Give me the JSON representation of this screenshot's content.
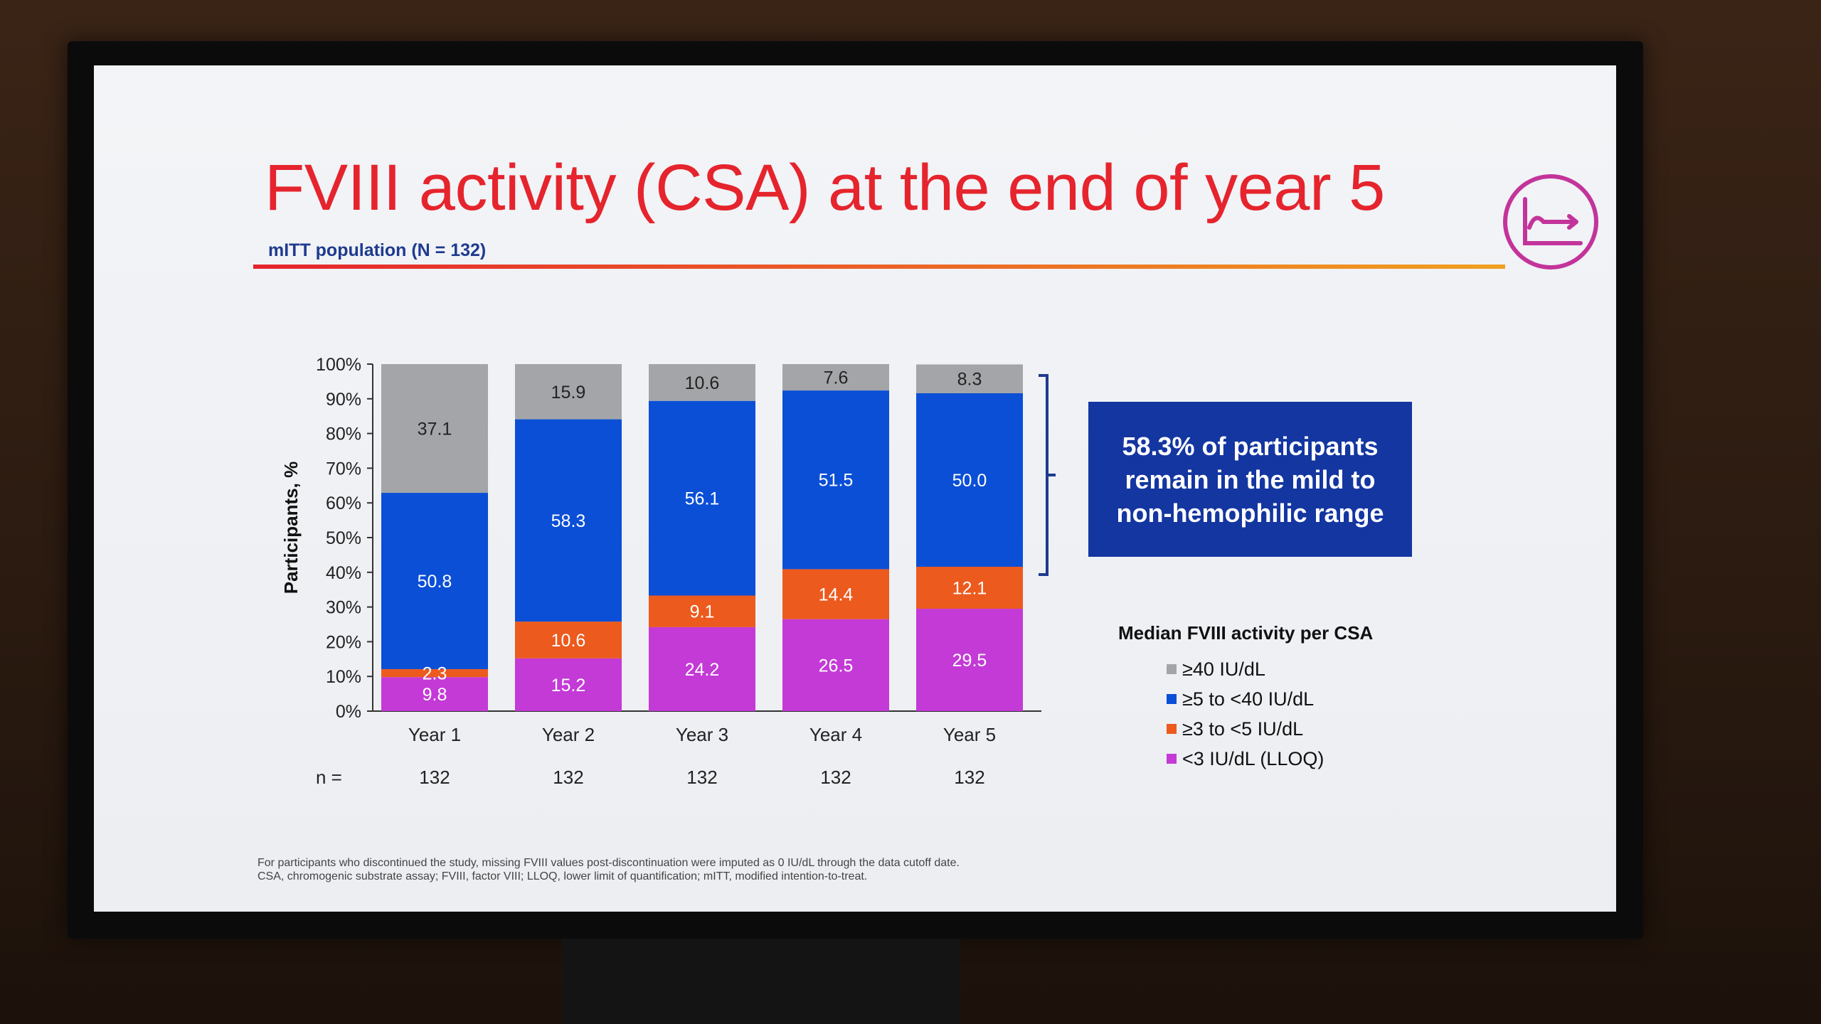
{
  "slide": {
    "title": "FVIII activity (CSA) at the end of year 5",
    "subtitle": "mITT population (N = 132)",
    "callout": "58.3% of participants remain in the mild to non-hemophilic range",
    "legend_title": "Median FVIII activity per CSA",
    "n_prefix": "n =",
    "footnote_line1": "For participants who discontinued the study, missing FVIII values post-discontinuation were imputed as  0 IU/dL through the data cutoff date.",
    "footnote_line2": "CSA, chromogenic substrate assay; FVIII, factor VIII; LLOQ, lower limit of quantification; mITT, modified intention-to-treat."
  },
  "colors": {
    "title": "#e5242d",
    "subtitle": "#1f3a8f",
    "callout_bg": "#1436a0",
    "icon": "#c3349b",
    "bracket": "#1f3a8f"
  },
  "icon": {
    "name": "pk-curve-icon"
  },
  "chart_data": {
    "type": "bar",
    "stacked": true,
    "ylabel": "Participants, %",
    "ylim": [
      0,
      100
    ],
    "yticks": [
      "0%",
      "10%",
      "20%",
      "30%",
      "40%",
      "50%",
      "60%",
      "70%",
      "80%",
      "90%",
      "100%"
    ],
    "categories": [
      "Year 1",
      "Year 2",
      "Year 3",
      "Year 4",
      "Year 5"
    ],
    "n_values": [
      "132",
      "132",
      "132",
      "132",
      "132"
    ],
    "series": [
      {
        "name": "<3 IU/dL (LLOQ)",
        "color": "#c33ad6",
        "label_color": "#ffffff",
        "values": [
          9.8,
          15.2,
          24.2,
          26.5,
          29.5
        ]
      },
      {
        "name": "≥3 to <5 IU/dL",
        "color": "#ec5a1e",
        "label_color": "#ffffff",
        "values": [
          2.3,
          10.6,
          9.1,
          14.4,
          12.1
        ]
      },
      {
        "name": "≥5 to <40 IU/dL",
        "color": "#0b4fd6",
        "label_color": "#ffffff",
        "values": [
          50.8,
          58.3,
          56.1,
          51.5,
          50.0
        ]
      },
      {
        "name": "≥40 IU/dL",
        "color": "#a3a5a8",
        "label_color": "#222222",
        "values": [
          37.1,
          15.9,
          10.6,
          7.6,
          8.3
        ]
      }
    ],
    "legend_order": [
      "≥40 IU/dL",
      "≥5 to <40 IU/dL",
      "≥3 to <5 IU/dL",
      "<3 IU/dL (LLOQ)"
    ],
    "legend_placement": "right",
    "grid": false
  }
}
